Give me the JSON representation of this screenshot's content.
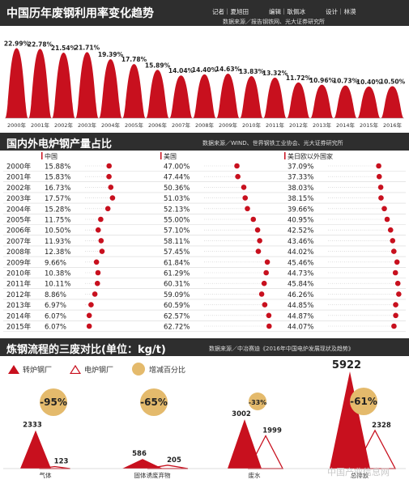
{
  "section1": {
    "title": "中国历年废钢利用率变化趋势",
    "credits": [
      "记者｜夏旭田",
      "编辑｜耿佩冰",
      "设计｜林漠"
    ],
    "source": "数据来源／报告钢铁网、光大证券研究所"
  },
  "section2": {
    "title": "国内外电炉钢产量占比",
    "source": "数据来源／WIND、世界钢铁工业协会、光大证券研究所",
    "col_headers": [
      "中国",
      "美国",
      "美日欧以外国家"
    ]
  },
  "section3": {
    "title": "炼钢流程的三废对比(单位：kg/t)",
    "source": "数据来源／中冶赛迪《2016年中国电炉发展现状及趋势》",
    "legend": [
      "转炉钢厂",
      "电炉钢厂",
      "增减百分比"
    ]
  },
  "colors": {
    "red": "#c8101e",
    "dark": "#2e2e2e",
    "gold": "#e4ba6c",
    "line": "#d8d8d8"
  },
  "watermark": "中国产业信息网",
  "chart_data": [
    {
      "type": "bar",
      "title": "中国历年废钢利用率变化趋势",
      "categories": [
        "2000年",
        "2001年",
        "2002年",
        "2003年",
        "2004年",
        "2005年",
        "2006年",
        "2007年",
        "2008年",
        "2009年",
        "2010年",
        "2011年",
        "2012年",
        "2013年",
        "2014年",
        "2015年",
        "2016年"
      ],
      "values": [
        22.99,
        22.78,
        21.54,
        21.71,
        19.39,
        17.78,
        15.89,
        14.04,
        14.4,
        14.63,
        13.83,
        13.32,
        11.72,
        10.96,
        10.73,
        10.4,
        10.5
      ],
      "labels": [
        "22.99%",
        "22.78%",
        "21.54%",
        "21.71%",
        "19.39%",
        "17.78%",
        "15.89%",
        "14.04%",
        "14.40%",
        "14.63%",
        "13.83%",
        "13.32%",
        "11.72%",
        "10.96%",
        "10.73%",
        "10.40%",
        "10.50%"
      ],
      "ylim": [
        0,
        25
      ]
    },
    {
      "type": "scatter",
      "title": "国内外电炉钢产量占比",
      "categories": [
        "2000年",
        "2001年",
        "2002年",
        "2003年",
        "2004年",
        "2005年",
        "2006年",
        "2007年",
        "2008年",
        "2009年",
        "2010年",
        "2011年",
        "2012年",
        "2013年",
        "2014年",
        "2015年"
      ],
      "series": [
        {
          "name": "中国",
          "values": [
            15.88,
            15.83,
            16.73,
            17.57,
            15.28,
            11.75,
            10.5,
            11.93,
            12.38,
            9.66,
            10.38,
            10.11,
            8.86,
            6.97,
            6.07,
            6.07
          ],
          "labels": [
            "15.88%",
            "15.83%",
            "16.73%",
            "17.57%",
            "15.28%",
            "11.75%",
            "10.50%",
            "11.93%",
            "12.38%",
            "9.66%",
            "10.38%",
            "10.11%",
            "8.86%",
            "6.97%",
            "6.07%",
            "6.07%"
          ]
        },
        {
          "name": "美国",
          "values": [
            47.0,
            47.44,
            50.36,
            51.03,
            52.13,
            55.0,
            57.1,
            58.11,
            57.45,
            61.84,
            61.29,
            60.31,
            59.09,
            60.59,
            62.57,
            62.72
          ],
          "labels": [
            "47.00%",
            "47.44%",
            "50.36%",
            "51.03%",
            "52.13%",
            "55.00%",
            "57.10%",
            "58.11%",
            "57.45%",
            "61.84%",
            "61.29%",
            "60.31%",
            "59.09%",
            "60.59%",
            "62.57%",
            "62.72%"
          ]
        },
        {
          "name": "美日欧以外国家",
          "values": [
            37.09,
            37.33,
            38.03,
            38.15,
            39.66,
            40.95,
            42.52,
            43.46,
            44.02,
            45.46,
            44.73,
            45.84,
            46.26,
            44.85,
            44.87,
            44.07
          ],
          "labels": [
            "37.09%",
            "37.33%",
            "38.03%",
            "38.15%",
            "39.66%",
            "40.95%",
            "42.52%",
            "43.46%",
            "44.02%",
            "45.46%",
            "44.73%",
            "45.84%",
            "46.26%",
            "44.85%",
            "44.87%",
            "44.07%"
          ]
        }
      ]
    },
    {
      "type": "area",
      "title": "炼钢流程的三废对比(单位：kg/t)",
      "categories": [
        "气体",
        "固体诱废弃物",
        "废水",
        "总排放"
      ],
      "series": [
        {
          "name": "转炉钢厂",
          "values": [
            2333,
            586,
            3002,
            5922
          ]
        },
        {
          "name": "电炉钢厂",
          "values": [
            123,
            205,
            1999,
            2328
          ]
        }
      ],
      "change": [
        "-95%",
        "-65%",
        "-33%",
        "-61%"
      ]
    }
  ]
}
